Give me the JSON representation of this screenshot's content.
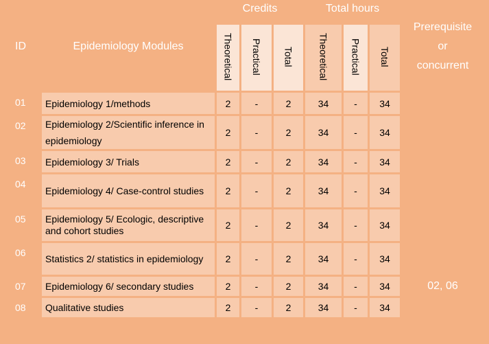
{
  "headers": {
    "id": "ID",
    "modules": "Epidemiology Modules",
    "credits": "Credits",
    "total_hours": "Total hours",
    "prerequisite": [
      "Prerequisite",
      "or",
      "concurrent"
    ],
    "theoretical": "Theoretical",
    "practical": "Practical",
    "total": "Total"
  },
  "rows": [
    {
      "id": "01",
      "module": "Epidemiology 1/methods",
      "ct": "2",
      "cp": "-",
      "ctot": "2",
      "ht": "34",
      "hp": "-",
      "htot": "34",
      "prereq": ""
    },
    {
      "id": "02",
      "module": "Epidemiology 2/Scientific inference in epidemiology",
      "ct": "2",
      "cp": "-",
      "ctot": "2",
      "ht": "34",
      "hp": "-",
      "htot": "34",
      "prereq": ""
    },
    {
      "id": "03",
      "module": "Epidemiology 3/ Trials",
      "ct": "2",
      "cp": "-",
      "ctot": "2",
      "ht": "34",
      "hp": "-",
      "htot": "34",
      "prereq": ""
    },
    {
      "id": "04",
      "module": "Epidemiology 4/ Case-control studies",
      "ct": "2",
      "cp": "-",
      "ctot": "2",
      "ht": "34",
      "hp": "-",
      "htot": "34",
      "prereq": ""
    },
    {
      "id": "05",
      "module": "Epidemiology 5/ Ecologic, descriptive and cohort studies",
      "ct": "2",
      "cp": "-",
      "ctot": "2",
      "ht": "34",
      "hp": "-",
      "htot": "34",
      "prereq": ""
    },
    {
      "id": "06",
      "module": "Statistics 2/ statistics in epidemiology",
      "ct": "2",
      "cp": "-",
      "ctot": "2",
      "ht": "34",
      "hp": "-",
      "htot": "34",
      "prereq": ""
    },
    {
      "id": "07",
      "module": "Epidemiology 6/ secondary studies",
      "ct": "2",
      "cp": "-",
      "ctot": "2",
      "ht": "34",
      "hp": "-",
      "htot": "34",
      "prereq": "02, 06"
    },
    {
      "id": "08",
      "module": "Qualitative studies",
      "ct": "2",
      "cp": "-",
      "ctot": "2",
      "ht": "34",
      "hp": "-",
      "htot": "34",
      "prereq": ""
    }
  ],
  "colors": {
    "dark": "#f4b183",
    "light": "#f8cbad",
    "lighter": "#fbe5d6",
    "header_text": "#ffffff"
  }
}
